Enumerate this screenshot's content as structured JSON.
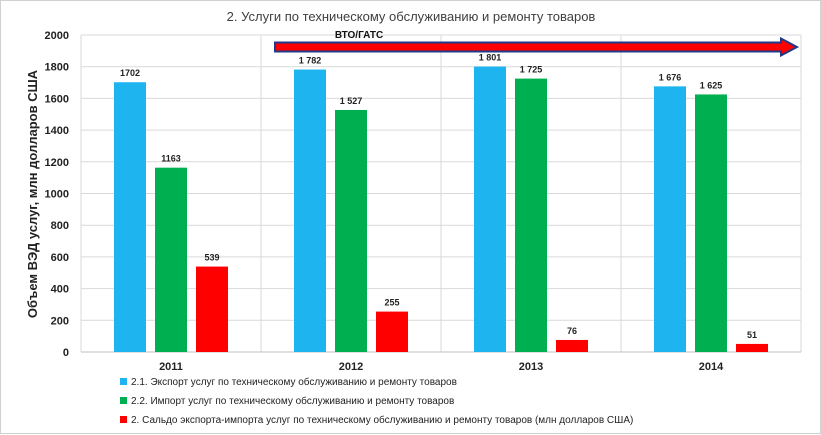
{
  "chart_data": {
    "type": "bar",
    "title": "2. Услуги по техническому обслуживанию и ремонту товаров",
    "xlabel": "",
    "ylabel": "Объем ВЭД услуг, млн долларов США",
    "categories": [
      "2011",
      "2012",
      "2013",
      "2014"
    ],
    "ylim": [
      0,
      2000
    ],
    "yticks": [
      "0",
      "200",
      "400",
      "600",
      "800",
      "1000",
      "1200",
      "1400",
      "1600",
      "1800",
      "2000"
    ],
    "grid": true,
    "legend_position": "bottom",
    "series": [
      {
        "name": "2.1. Экспорт услуг по техническому обслуживанию и ремонту товаров",
        "color": "#1EB4F0",
        "values": [
          1702,
          1782,
          1801,
          1676
        ],
        "labels": [
          "1702",
          "1 782",
          "1 801",
          "1 676"
        ]
      },
      {
        "name": "2.2. Импорт услуг по техническому обслуживанию и ремонту товаров",
        "color": "#00B050",
        "values": [
          1163,
          1527,
          1725,
          1625
        ],
        "labels": [
          "1163",
          "1 527",
          "1 725",
          "1 625"
        ]
      },
      {
        "name": "2. Сальдо экспорта-импорта услуг по техническому обслуживанию и ремонту товаров (млн долларов США)",
        "color": "#FF0000",
        "values": [
          539,
          255,
          76,
          51
        ],
        "labels": [
          "539",
          "255",
          "76",
          "51"
        ]
      }
    ],
    "annotation": {
      "text": "ВТО/ГАТС",
      "from_category": "2012",
      "to_category": "2014",
      "color": "#FF0000",
      "border_color": "#1F3A8A"
    }
  }
}
